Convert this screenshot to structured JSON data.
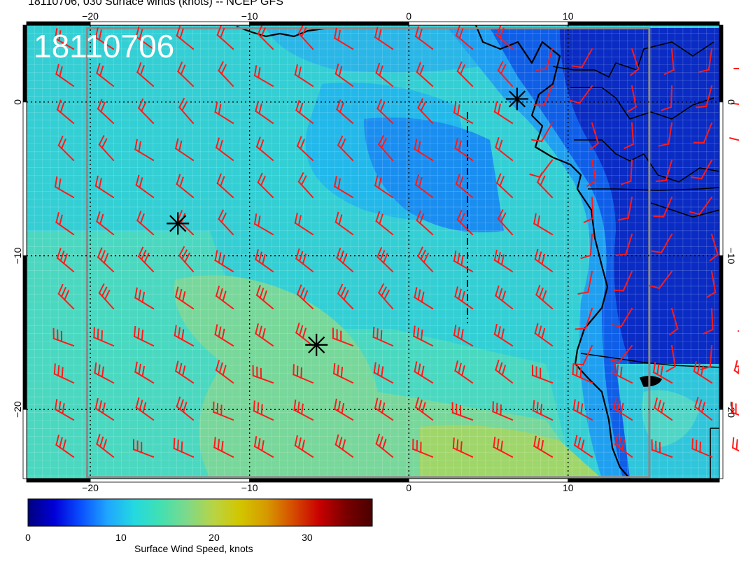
{
  "title": "18110706, 030 Surface winds (knots) -- NCEP GFS",
  "datestamp": "18110706",
  "lon_axis": {
    "range": [
      -24,
      19.5
    ],
    "ticks": [
      {
        "value": -20,
        "label": "−20"
      },
      {
        "value": -10,
        "label": "−10"
      },
      {
        "value": 0,
        "label": "0"
      },
      {
        "value": 10,
        "label": "10"
      }
    ]
  },
  "lat_axis": {
    "range": [
      -24.5,
      5
    ],
    "ticks": [
      {
        "value": 0,
        "label": "0"
      },
      {
        "value": -10,
        "label": "−10"
      },
      {
        "value": -20,
        "label": "−20"
      }
    ]
  },
  "grid": "dotted",
  "colorbar": {
    "label": "Surface Wind Speed, knots",
    "range": [
      0,
      37
    ],
    "ticks": [
      {
        "value": 0,
        "label": "0"
      },
      {
        "value": 10,
        "label": "10"
      },
      {
        "value": 20,
        "label": "20"
      },
      {
        "value": 30,
        "label": "30"
      }
    ],
    "colors": [
      "#00007f",
      "#0000d8",
      "#0a50ff",
      "#1fa6ff",
      "#23d9e0",
      "#42e0b2",
      "#7dd98a",
      "#b8d445",
      "#d2c600",
      "#d69a00",
      "#d64d00",
      "#c80000",
      "#7a0000",
      "#4a0000"
    ]
  },
  "markers": [
    {
      "name": "marker-1",
      "lon": 6.8,
      "lat": 0.2
    },
    {
      "name": "marker-2",
      "lon": -14.5,
      "lat": -7.9
    },
    {
      "name": "marker-3",
      "lon": -5.8,
      "lat": -15.8
    }
  ],
  "barb_color": "#ff1a1a"
}
